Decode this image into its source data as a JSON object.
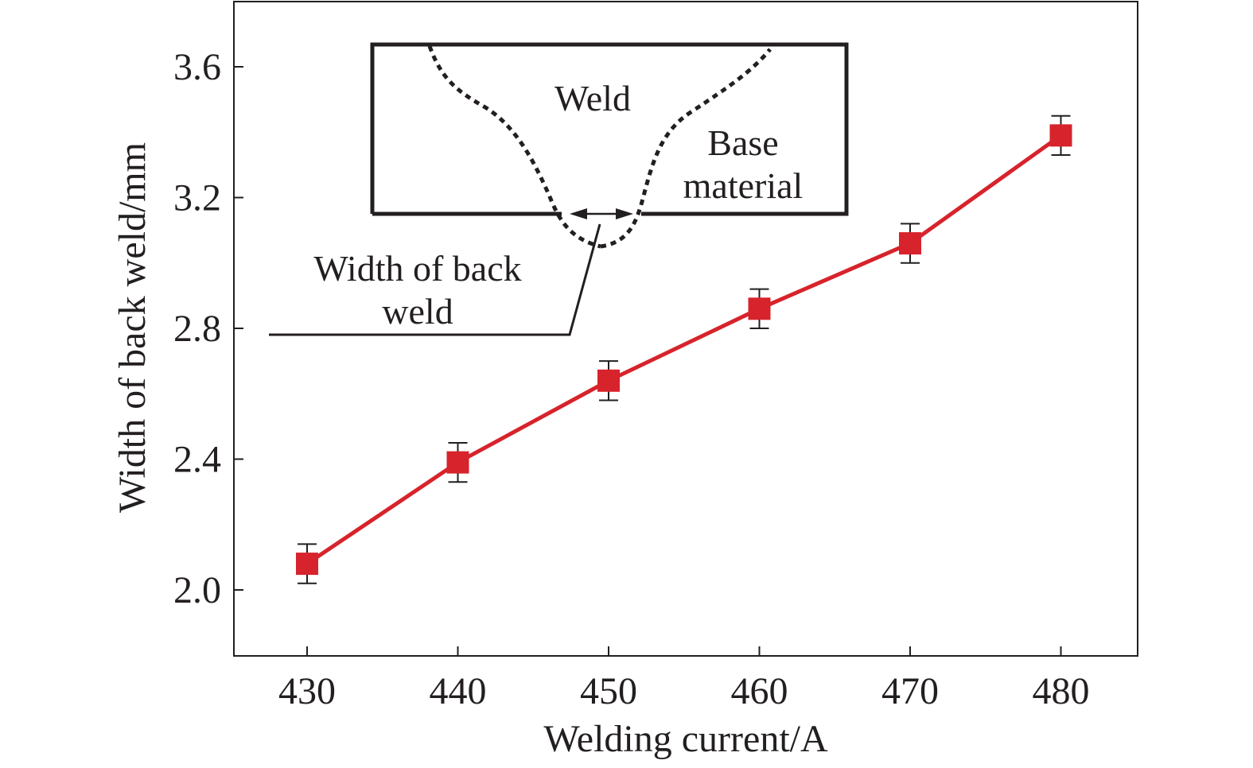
{
  "chart_data": {
    "type": "line",
    "title": "",
    "xlabel": "Welding current/A",
    "ylabel": "Width of back weld/mm",
    "x": [
      430,
      440,
      450,
      460,
      470,
      480
    ],
    "series": [
      {
        "values": [
          2.08,
          2.39,
          2.64,
          2.86,
          3.06,
          3.39
        ],
        "error": [
          0.06,
          0.06,
          0.06,
          0.06,
          0.06,
          0.06
        ],
        "color": "#d7232b",
        "marker": "square"
      }
    ],
    "xlim": [
      425,
      487
    ],
    "ylim": [
      1.8,
      3.8
    ],
    "xticks": [
      "430",
      "440",
      "450",
      "460",
      "470",
      "480"
    ],
    "yticks": [
      "2.0",
      "2.4",
      "2.8",
      "3.2",
      "3.6"
    ],
    "grid": false,
    "inset": {
      "weld_label": "Weld",
      "base_label_line1": "Base",
      "base_label_line2": "material",
      "width_label_line1": "Width of back",
      "width_label_line2": "weld"
    }
  },
  "colors": {
    "axis": "#231f20",
    "series": "#d7232b",
    "error_bar": "#231f20"
  }
}
